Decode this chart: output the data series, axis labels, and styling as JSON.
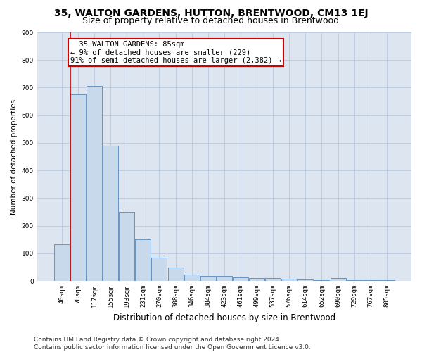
{
  "title": "35, WALTON GARDENS, HUTTON, BRENTWOOD, CM13 1EJ",
  "subtitle": "Size of property relative to detached houses in Brentwood",
  "xlabel": "Distribution of detached houses by size in Brentwood",
  "ylabel": "Number of detached properties",
  "bar_labels": [
    "40sqm",
    "78sqm",
    "117sqm",
    "155sqm",
    "193sqm",
    "231sqm",
    "270sqm",
    "308sqm",
    "346sqm",
    "384sqm",
    "423sqm",
    "461sqm",
    "499sqm",
    "537sqm",
    "576sqm",
    "614sqm",
    "652sqm",
    "690sqm",
    "729sqm",
    "767sqm",
    "805sqm"
  ],
  "bar_values": [
    132,
    675,
    705,
    490,
    250,
    150,
    85,
    48,
    22,
    18,
    18,
    12,
    10,
    10,
    7,
    5,
    3,
    10,
    3,
    3,
    3
  ],
  "bar_color": "#c9d9ec",
  "bar_edge_color": "#5588bb",
  "grid_color": "#b8c8dc",
  "background_color": "#dde6f0",
  "annotation_text": "  35 WALTON GARDENS: 85sqm\n← 9% of detached houses are smaller (229)\n91% of semi-detached houses are larger (2,382) →",
  "annotation_box_color": "white",
  "annotation_box_edge_color": "#cc0000",
  "marker_line_color": "#cc0000",
  "ylim": [
    0,
    900
  ],
  "yticks": [
    0,
    100,
    200,
    300,
    400,
    500,
    600,
    700,
    800,
    900
  ],
  "footer_line1": "Contains HM Land Registry data © Crown copyright and database right 2024.",
  "footer_line2": "Contains public sector information licensed under the Open Government Licence v3.0.",
  "title_fontsize": 10,
  "subtitle_fontsize": 9,
  "xlabel_fontsize": 8.5,
  "ylabel_fontsize": 7.5,
  "tick_fontsize": 6.5,
  "annotation_fontsize": 7.5,
  "footer_fontsize": 6.5
}
